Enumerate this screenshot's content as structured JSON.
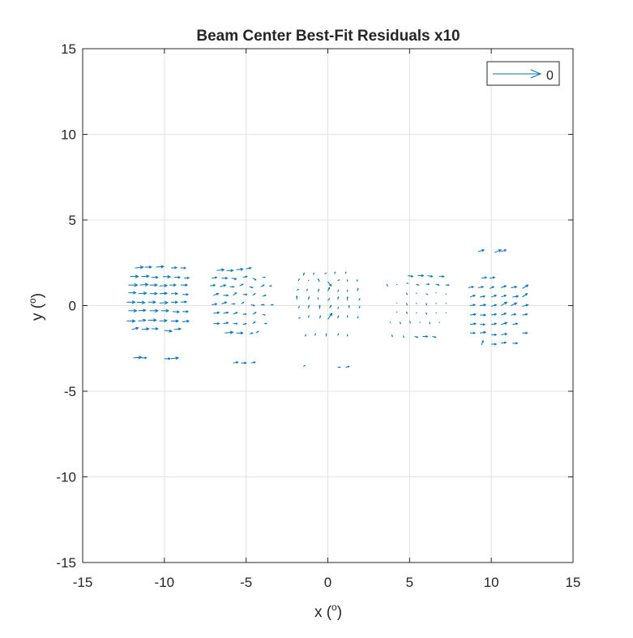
{
  "chart_data": {
    "type": "quiver",
    "title": "Beam Center Best-Fit Residuals x10",
    "xlabel": "x (",
    "xlabel_unit": "o",
    "xlabel_close": ")",
    "ylabel": "y (",
    "ylabel_unit": "o",
    "ylabel_close": ")",
    "xlim": [
      -15,
      15
    ],
    "ylim": [
      -15,
      15
    ],
    "xticks": [
      "-15",
      "-10",
      "-5",
      "0",
      "5",
      "10",
      "15"
    ],
    "yticks": [
      "-15",
      "-10",
      "-5",
      "0",
      "5",
      "10",
      "15"
    ],
    "grid": true,
    "legend": {
      "position": "top-right",
      "label": "0"
    },
    "color": "#0072BD",
    "vectors": [
      [
        -11.8,
        2.2,
        0.5,
        0.05
      ],
      [
        -11.2,
        2.25,
        0.4,
        0.0
      ],
      [
        -10.5,
        2.25,
        0.45,
        0.03
      ],
      [
        -9.6,
        2.2,
        0.35,
        0.02
      ],
      [
        -9.0,
        2.2,
        0.3,
        0.0
      ],
      [
        -12.1,
        1.7,
        0.5,
        0.0
      ],
      [
        -11.4,
        1.7,
        0.45,
        0.02
      ],
      [
        -10.8,
        1.65,
        0.4,
        0.0
      ],
      [
        -10.1,
        1.7,
        0.45,
        -0.02
      ],
      [
        -9.4,
        1.65,
        0.35,
        0.0
      ],
      [
        -8.8,
        1.6,
        0.3,
        0.02
      ],
      [
        -12.2,
        1.2,
        0.55,
        0.0
      ],
      [
        -11.5,
        1.2,
        0.5,
        0.03
      ],
      [
        -10.9,
        1.2,
        0.45,
        0.0
      ],
      [
        -10.3,
        1.15,
        0.45,
        0.02
      ],
      [
        -9.7,
        1.2,
        0.4,
        0.0
      ],
      [
        -9.0,
        1.2,
        0.4,
        0.0
      ],
      [
        -12.2,
        0.75,
        0.45,
        0.0
      ],
      [
        -11.6,
        0.7,
        0.5,
        0.03
      ],
      [
        -10.9,
        0.7,
        0.45,
        0.0
      ],
      [
        -10.3,
        0.7,
        0.45,
        0.02
      ],
      [
        -9.6,
        0.7,
        0.4,
        0.0
      ],
      [
        -8.9,
        0.65,
        0.35,
        0.0
      ],
      [
        -12.3,
        0.2,
        0.5,
        0.0
      ],
      [
        -11.7,
        0.2,
        0.5,
        -0.03
      ],
      [
        -11.0,
        0.2,
        0.45,
        0.0
      ],
      [
        -10.3,
        0.15,
        0.5,
        0.03
      ],
      [
        -9.6,
        0.2,
        0.4,
        0.0
      ],
      [
        -9.0,
        0.2,
        0.35,
        0.02
      ],
      [
        -12.2,
        -0.3,
        0.5,
        0.0
      ],
      [
        -11.6,
        -0.3,
        0.45,
        0.03
      ],
      [
        -10.9,
        -0.3,
        0.5,
        0.0
      ],
      [
        -10.2,
        -0.3,
        0.45,
        0.0
      ],
      [
        -9.5,
        -0.35,
        0.4,
        -0.02
      ],
      [
        -8.9,
        -0.35,
        0.35,
        0.0
      ],
      [
        -12.3,
        -0.9,
        0.5,
        0.0
      ],
      [
        -11.6,
        -0.9,
        0.45,
        0.05
      ],
      [
        -11.0,
        -0.85,
        0.5,
        0.0
      ],
      [
        -10.3,
        -0.9,
        0.45,
        0.03
      ],
      [
        -9.6,
        -0.9,
        0.45,
        0.0
      ],
      [
        -8.9,
        -0.95,
        0.4,
        0.05
      ],
      [
        -12.0,
        -1.4,
        0.4,
        0.1
      ],
      [
        -11.4,
        -1.4,
        0.45,
        0.05
      ],
      [
        -10.8,
        -1.35,
        0.4,
        0.0
      ],
      [
        -10.0,
        -1.45,
        0.45,
        -0.05
      ],
      [
        -9.4,
        -1.4,
        0.4,
        0.05
      ],
      [
        -11.9,
        -3.05,
        0.5,
        0.03
      ],
      [
        -11.4,
        -3.05,
        0.3,
        0.0
      ],
      [
        -10.0,
        -3.1,
        0.35,
        0.0
      ],
      [
        -9.6,
        -3.1,
        0.45,
        0.05
      ],
      [
        -6.8,
        2.05,
        0.45,
        0.05
      ],
      [
        -6.2,
        2.05,
        0.4,
        0.0
      ],
      [
        -5.6,
        2.1,
        0.4,
        0.03
      ],
      [
        -5.0,
        2.15,
        0.3,
        0.05
      ],
      [
        -7.1,
        1.6,
        0.3,
        0.05
      ],
      [
        -6.5,
        1.6,
        0.35,
        0.0
      ],
      [
        -5.9,
        1.6,
        0.3,
        -0.05
      ],
      [
        -5.2,
        1.65,
        0.25,
        0.05
      ],
      [
        -4.6,
        1.6,
        0.2,
        -0.1
      ],
      [
        -4.0,
        1.65,
        0.15,
        0.0
      ],
      [
        -7.2,
        1.15,
        0.3,
        0.05
      ],
      [
        -6.6,
        1.1,
        0.35,
        0.1
      ],
      [
        -6.0,
        1.1,
        0.25,
        0.0
      ],
      [
        -5.4,
        1.15,
        0.2,
        0.1
      ],
      [
        -4.8,
        1.1,
        0.2,
        -0.05
      ],
      [
        -4.1,
        1.1,
        0.2,
        0.1
      ],
      [
        -3.6,
        1.15,
        0.15,
        0.0
      ],
      [
        -7.0,
        0.6,
        0.3,
        0.1
      ],
      [
        -6.4,
        0.6,
        0.3,
        0.0
      ],
      [
        -5.8,
        0.6,
        0.2,
        0.15
      ],
      [
        -5.2,
        0.65,
        0.25,
        0.0
      ],
      [
        -4.6,
        0.6,
        0.15,
        0.1
      ],
      [
        -4.0,
        0.55,
        0.2,
        0.05
      ],
      [
        -7.1,
        0.05,
        0.3,
        0.05
      ],
      [
        -6.5,
        0.1,
        0.3,
        0.1
      ],
      [
        -5.9,
        0.1,
        0.2,
        0.0
      ],
      [
        -5.3,
        0.1,
        0.15,
        0.1
      ],
      [
        -4.7,
        0.05,
        0.2,
        -0.05
      ],
      [
        -4.1,
        0.05,
        0.2,
        0.0
      ],
      [
        -3.5,
        0.05,
        0.15,
        0.0
      ],
      [
        -7.0,
        -0.45,
        0.35,
        0.05
      ],
      [
        -6.4,
        -0.45,
        0.3,
        0.05
      ],
      [
        -5.8,
        -0.5,
        0.25,
        0.1
      ],
      [
        -5.2,
        -0.5,
        0.2,
        0.0
      ],
      [
        -4.6,
        -0.5,
        0.2,
        0.1
      ],
      [
        -4.0,
        -0.5,
        0.15,
        -0.05
      ],
      [
        -7.0,
        -1.05,
        0.35,
        0.0
      ],
      [
        -6.4,
        -1.05,
        0.3,
        0.05
      ],
      [
        -5.8,
        -1.05,
        0.25,
        0.0
      ],
      [
        -5.2,
        -1.1,
        0.2,
        0.05
      ],
      [
        -4.6,
        -1.05,
        0.15,
        0.1
      ],
      [
        -3.9,
        -1.05,
        0.15,
        0.0
      ],
      [
        -6.3,
        -1.6,
        0.5,
        0.05
      ],
      [
        -5.6,
        -1.6,
        0.4,
        0.0
      ],
      [
        -4.8,
        -1.65,
        0.2,
        0.05
      ],
      [
        -4.4,
        -1.6,
        0.15,
        0.1
      ],
      [
        -5.8,
        -3.35,
        0.3,
        0.05
      ],
      [
        -5.3,
        -3.35,
        0.3,
        0.0
      ],
      [
        -4.7,
        -3.35,
        0.25,
        0.05
      ],
      [
        -1.5,
        1.75,
        0.05,
        0.15
      ],
      [
        -0.9,
        1.8,
        0.05,
        0.1
      ],
      [
        -0.2,
        1.85,
        0.1,
        0.05
      ],
      [
        0.4,
        1.85,
        0.05,
        0.1
      ],
      [
        1.1,
        1.85,
        0.0,
        0.1
      ],
      [
        -1.8,
        1.45,
        0.05,
        0.1
      ],
      [
        -1.2,
        1.45,
        0.05,
        0.05
      ],
      [
        -0.5,
        1.4,
        -0.1,
        0.15
      ],
      [
        0.0,
        1.4,
        0.2,
        -0.25
      ],
      [
        0.6,
        1.45,
        0.1,
        0.05
      ],
      [
        1.2,
        1.4,
        0.0,
        0.1
      ],
      [
        1.8,
        1.4,
        0.0,
        0.1
      ],
      [
        -1.9,
        0.9,
        0.1,
        0.05
      ],
      [
        -1.3,
        0.85,
        0.05,
        0.1
      ],
      [
        -0.6,
        0.8,
        0.05,
        0.15
      ],
      [
        0.0,
        0.85,
        0.1,
        0.2
      ],
      [
        0.6,
        0.8,
        0.05,
        0.1
      ],
      [
        1.2,
        0.8,
        0.0,
        0.1
      ],
      [
        1.8,
        0.85,
        0.05,
        0.15
      ],
      [
        -1.9,
        0.35,
        0.0,
        0.2
      ],
      [
        -1.2,
        0.35,
        0.05,
        0.15
      ],
      [
        -0.6,
        0.35,
        0.0,
        0.1
      ],
      [
        0.0,
        0.3,
        0.1,
        0.1
      ],
      [
        0.6,
        0.35,
        0.05,
        0.15
      ],
      [
        1.2,
        0.3,
        0.0,
        0.2
      ],
      [
        1.9,
        0.3,
        0.05,
        0.1
      ],
      [
        -1.8,
        -0.15,
        0.05,
        0.1
      ],
      [
        -1.2,
        -0.15,
        0.05,
        0.15
      ],
      [
        -0.5,
        -0.2,
        0.0,
        0.2
      ],
      [
        0.1,
        -0.15,
        0.1,
        0.15
      ],
      [
        0.6,
        -0.2,
        0.05,
        0.1
      ],
      [
        1.3,
        -0.15,
        0.0,
        0.15
      ],
      [
        1.9,
        -0.15,
        0.05,
        0.1
      ],
      [
        -1.8,
        -0.75,
        0.1,
        0.05
      ],
      [
        -1.2,
        -0.7,
        0.05,
        0.1
      ],
      [
        -0.5,
        -0.75,
        0.05,
        0.15
      ],
      [
        0.0,
        -0.8,
        0.25,
        0.35
      ],
      [
        0.6,
        -0.75,
        0.05,
        0.15
      ],
      [
        1.2,
        -0.7,
        0.0,
        0.1
      ],
      [
        1.8,
        -0.75,
        0.05,
        0.1
      ],
      [
        -1.4,
        -1.8,
        0.05,
        0.1
      ],
      [
        -0.8,
        -1.75,
        0.05,
        0.1
      ],
      [
        -0.1,
        -1.8,
        0.0,
        0.15
      ],
      [
        0.6,
        -1.75,
        0.05,
        0.1
      ],
      [
        1.2,
        -1.8,
        0.0,
        0.1
      ],
      [
        -1.5,
        -3.55,
        0.1,
        0.05
      ],
      [
        -0.6,
        -3.6,
        0.0,
        0.0
      ],
      [
        0.6,
        -3.6,
        0.15,
        0.0
      ],
      [
        1.1,
        -3.6,
        0.2,
        0.05
      ],
      [
        4.9,
        1.75,
        0.3,
        -0.05
      ],
      [
        5.5,
        1.75,
        0.35,
        0.0
      ],
      [
        6.1,
        1.75,
        0.3,
        -0.05
      ],
      [
        6.8,
        1.7,
        0.3,
        0.0
      ],
      [
        3.6,
        1.25,
        0.05,
        -0.1
      ],
      [
        4.2,
        1.25,
        0.05,
        -0.05
      ],
      [
        4.8,
        1.3,
        0.1,
        0.0
      ],
      [
        5.4,
        1.25,
        0.15,
        -0.05
      ],
      [
        6.0,
        1.25,
        0.2,
        0.0
      ],
      [
        6.6,
        1.25,
        0.2,
        -0.05
      ],
      [
        7.2,
        1.2,
        0.2,
        0.0
      ],
      [
        4.8,
        0.75,
        0.05,
        -0.1
      ],
      [
        5.4,
        0.75,
        0.05,
        -0.05
      ],
      [
        6.0,
        0.7,
        0.1,
        -0.05
      ],
      [
        6.6,
        0.75,
        0.05,
        0.0
      ],
      [
        7.2,
        0.7,
        0.05,
        -0.05
      ],
      [
        4.2,
        0.15,
        0.05,
        0.0
      ],
      [
        4.8,
        0.15,
        0.05,
        -0.1
      ],
      [
        5.4,
        0.15,
        0.05,
        -0.05
      ],
      [
        6.0,
        0.15,
        0.05,
        -0.1
      ],
      [
        6.6,
        0.15,
        0.05,
        -0.05
      ],
      [
        7.2,
        0.15,
        0.05,
        -0.05
      ],
      [
        4.2,
        -0.35,
        0.05,
        -0.05
      ],
      [
        4.8,
        -0.35,
        0.05,
        -0.1
      ],
      [
        5.4,
        -0.4,
        0.05,
        -0.05
      ],
      [
        6.0,
        -0.4,
        0.05,
        -0.1
      ],
      [
        6.6,
        -0.4,
        0.05,
        -0.05
      ],
      [
        7.2,
        -0.4,
        0.05,
        -0.05
      ],
      [
        3.8,
        -0.95,
        0.05,
        -0.05
      ],
      [
        4.4,
        -0.95,
        0.05,
        -0.1
      ],
      [
        5.0,
        -0.9,
        0.05,
        -0.1
      ],
      [
        5.6,
        -0.95,
        0.05,
        -0.05
      ],
      [
        6.2,
        -0.95,
        0.05,
        -0.1
      ],
      [
        6.8,
        -0.95,
        0.05,
        -0.05
      ],
      [
        3.9,
        -1.7,
        0.05,
        -0.1
      ],
      [
        4.6,
        -1.75,
        0.05,
        -0.1
      ],
      [
        5.3,
        -1.8,
        0.2,
        -0.05
      ],
      [
        5.8,
        -1.8,
        0.3,
        0.0
      ],
      [
        6.4,
        -1.8,
        0.2,
        -0.05
      ],
      [
        9.2,
        3.15,
        0.35,
        0.1
      ],
      [
        10.2,
        3.1,
        0.4,
        0.15
      ],
      [
        10.6,
        3.15,
        0.3,
        0.1
      ],
      [
        9.4,
        1.6,
        0.3,
        0.05
      ],
      [
        9.9,
        1.6,
        0.3,
        0.05
      ],
      [
        8.6,
        1.05,
        0.3,
        0.05
      ],
      [
        9.2,
        1.05,
        0.3,
        0.05
      ],
      [
        9.9,
        1.0,
        0.25,
        0.1
      ],
      [
        10.6,
        1.05,
        0.3,
        0.1
      ],
      [
        11.2,
        1.05,
        0.35,
        0.05
      ],
      [
        11.9,
        1.0,
        0.35,
        0.2
      ],
      [
        8.7,
        0.5,
        0.3,
        0.1
      ],
      [
        9.3,
        0.5,
        0.3,
        0.05
      ],
      [
        10.0,
        0.5,
        0.3,
        0.1
      ],
      [
        10.6,
        0.5,
        0.3,
        0.1
      ],
      [
        11.3,
        0.5,
        0.35,
        0.05
      ],
      [
        11.9,
        0.5,
        0.3,
        0.2
      ],
      [
        8.7,
        0.0,
        0.3,
        0.05
      ],
      [
        9.3,
        0.0,
        0.35,
        0.05
      ],
      [
        10.0,
        -0.05,
        0.3,
        0.1
      ],
      [
        10.6,
        0.0,
        0.35,
        0.2
      ],
      [
        11.2,
        0.0,
        0.35,
        0.15
      ],
      [
        11.9,
        -0.05,
        0.35,
        0.1
      ],
      [
        8.7,
        -0.55,
        0.35,
        0.05
      ],
      [
        9.3,
        -0.55,
        0.35,
        0.0
      ],
      [
        10.0,
        -0.55,
        0.3,
        0.05
      ],
      [
        10.6,
        -0.55,
        0.3,
        0.1
      ],
      [
        11.2,
        -0.55,
        0.3,
        0.05
      ],
      [
        11.9,
        -0.55,
        0.3,
        0.05
      ],
      [
        8.7,
        -1.1,
        0.35,
        0.05
      ],
      [
        9.3,
        -1.1,
        0.3,
        0.0
      ],
      [
        10.0,
        -1.1,
        0.3,
        0.05
      ],
      [
        10.6,
        -1.1,
        0.35,
        0.1
      ],
      [
        11.3,
        -1.1,
        0.3,
        0.05
      ],
      [
        8.7,
        -1.6,
        0.3,
        0.0
      ],
      [
        9.3,
        -1.6,
        0.35,
        0.05
      ],
      [
        10.0,
        -1.7,
        0.3,
        0.0
      ],
      [
        10.6,
        -1.7,
        0.35,
        0.05
      ],
      [
        11.9,
        -1.6,
        0.3,
        0.0
      ],
      [
        9.4,
        -2.3,
        0.1,
        0.25
      ],
      [
        10.0,
        -2.25,
        0.3,
        0.0
      ],
      [
        10.6,
        -2.2,
        0.3,
        0.05
      ],
      [
        11.3,
        -2.2,
        0.3,
        0.0
      ]
    ]
  }
}
